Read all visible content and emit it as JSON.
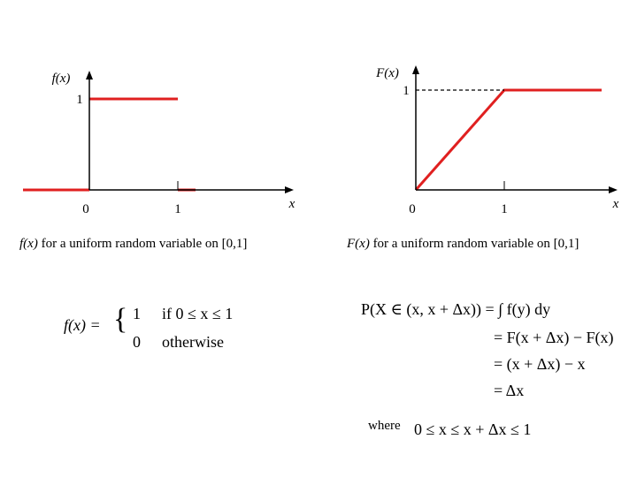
{
  "chart_data": [
    {
      "type": "line",
      "ylabel": "f(x)",
      "xlabel": "x",
      "x_ticks": [
        "0",
        "1"
      ],
      "y_ticks": [
        "1"
      ],
      "xlim": [
        -0.75,
        1.2
      ],
      "ylim": [
        0,
        1.3
      ],
      "series": [
        {
          "x": [
            -0.75,
            0
          ],
          "y": [
            0,
            0
          ]
        },
        {
          "x": [
            0,
            1
          ],
          "y": [
            1,
            1
          ]
        },
        {
          "x": [
            1,
            1.2
          ],
          "y": [
            0,
            0
          ]
        }
      ],
      "line_color": "#e02020",
      "caption_fn": "f(x)",
      "caption_text": "for a uniform random variable on [0,1]"
    },
    {
      "type": "line",
      "ylabel": "F(x)",
      "xlabel": "x",
      "x_ticks": [
        "0",
        "1"
      ],
      "y_ticks": [
        "1"
      ],
      "xlim": [
        0,
        2.1
      ],
      "ylim": [
        0,
        1.3
      ],
      "series": [
        {
          "x": [
            0,
            1,
            2.1
          ],
          "y": [
            0,
            1,
            1
          ]
        }
      ],
      "guide": "dashed",
      "line_color": "#e02020",
      "caption_fn": "F(x)",
      "caption_text": "for a uniform random variable on [0,1]"
    }
  ],
  "pdf_formula": {
    "lhs": "f(x) =",
    "case1_value": "1",
    "case1_cond": "if 0 ≤ x ≤ 1",
    "case2_value": "0",
    "case2_cond": "otherwise"
  },
  "cdf_formula": {
    "line1": "P(X ∈ (x, x + Δx)) = ∫ f(y) dy",
    "line2": "= F(x + Δx) − F(x)",
    "line3": "= (x + Δx) − x",
    "line4": "= Δx",
    "where_label": "where",
    "where_cond": "0 ≤ x ≤ x + Δx ≤ 1"
  }
}
